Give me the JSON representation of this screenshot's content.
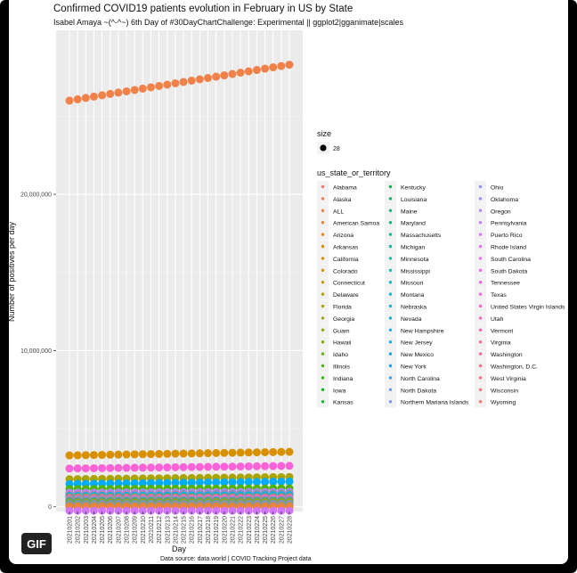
{
  "badge": "GIF",
  "chart_data": {
    "type": "scatter",
    "title": "Confirmed COVID19 patients evolution in February in US by State",
    "subtitle": "Isabel Amaya ~(^-^~) 6th Day of #30DayChartChallenge: Experimental || ggplot2|gganimate|scales",
    "xlabel": "Day",
    "ylabel": "Number of positives per day",
    "caption": "Data source: data.world | COVID Tracking Project data",
    "x": [
      "20210201",
      "20210202",
      "20210203",
      "20210204",
      "20210205",
      "20210206",
      "20210207",
      "20210208",
      "20210209",
      "20210210",
      "20210211",
      "20210212",
      "20210213",
      "20210214",
      "20210215",
      "20210216",
      "20210217",
      "20210218",
      "20210219",
      "20210220",
      "20210221",
      "20210222",
      "20210223",
      "20210224",
      "20210225",
      "20210226",
      "20210227",
      "20210228"
    ],
    "yticks": [
      "0",
      "10,000,000",
      "20,000,000"
    ],
    "ylim": [
      -300000,
      30500000
    ],
    "grid": true,
    "legend_position": "right",
    "size_legend": {
      "title": "size",
      "value": "28"
    },
    "legend_title": "us_state_or_territory",
    "legend_entries": [
      {
        "name": "Alabama",
        "color": "#F8766D"
      },
      {
        "name": "Alaska",
        "color": "#F47B5B"
      },
      {
        "name": "ALL",
        "color": "#F08148"
      },
      {
        "name": "American Samoa",
        "color": "#EB8535"
      },
      {
        "name": "Arizona",
        "color": "#E58A1E"
      },
      {
        "name": "Arkansas",
        "color": "#DE8C00"
      },
      {
        "name": "California",
        "color": "#D89000"
      },
      {
        "name": "Colorado",
        "color": "#D09400"
      },
      {
        "name": "Connecticut",
        "color": "#C49A00"
      },
      {
        "name": "Delaware",
        "color": "#B79F00"
      },
      {
        "name": "Florida",
        "color": "#AAA300"
      },
      {
        "name": "Georgia",
        "color": "#9CA700"
      },
      {
        "name": "Guam",
        "color": "#8DAB00"
      },
      {
        "name": "Hawaii",
        "color": "#7CAE00"
      },
      {
        "name": "Idaho",
        "color": "#68B100"
      },
      {
        "name": "Illinois",
        "color": "#4FB400"
      },
      {
        "name": "Indiana",
        "color": "#2EB600"
      },
      {
        "name": "Iowa",
        "color": "#00B81F"
      },
      {
        "name": "Kansas",
        "color": "#00BA38"
      },
      {
        "name": "Kentucky",
        "color": "#00BB4E"
      },
      {
        "name": "Louisiana",
        "color": "#00BC62"
      },
      {
        "name": "Maine",
        "color": "#00BE73"
      },
      {
        "name": "Maryland",
        "color": "#00BF84"
      },
      {
        "name": "Massachusetts",
        "color": "#00C094"
      },
      {
        "name": "Michigan",
        "color": "#00C0A3"
      },
      {
        "name": "Minnesota",
        "color": "#00C1B1"
      },
      {
        "name": "Mississippi",
        "color": "#00C1BE"
      },
      {
        "name": "Missouri",
        "color": "#00C0CA"
      },
      {
        "name": "Montana",
        "color": "#00BFD5"
      },
      {
        "name": "Nebraska",
        "color": "#00BDDF"
      },
      {
        "name": "Nevada",
        "color": "#00BBE8"
      },
      {
        "name": "New Hampshire",
        "color": "#00B8F0"
      },
      {
        "name": "New Jersey",
        "color": "#00B4F6"
      },
      {
        "name": "New Mexico",
        "color": "#00B0F6"
      },
      {
        "name": "New York",
        "color": "#00ABFC"
      },
      {
        "name": "North Carolina",
        "color": "#35A2FF"
      },
      {
        "name": "North Dakota",
        "color": "#619CFF"
      },
      {
        "name": "Northern Mariana Islands",
        "color": "#7F96FF"
      },
      {
        "name": "Ohio",
        "color": "#9590FF"
      },
      {
        "name": "Oklahoma",
        "color": "#A58AFF"
      },
      {
        "name": "Oregon",
        "color": "#B983FF"
      },
      {
        "name": "Pennsylvania",
        "color": "#C77CFF"
      },
      {
        "name": "Puerto Rico",
        "color": "#D277FC"
      },
      {
        "name": "Rhode Island",
        "color": "#DC71FA"
      },
      {
        "name": "South Carolina",
        "color": "#E76BF3"
      },
      {
        "name": "South Dakota",
        "color": "#F066EA"
      },
      {
        "name": "Tennessee",
        "color": "#F763E0"
      },
      {
        "name": "Texas",
        "color": "#FA62D8"
      },
      {
        "name": "United States Virgin Islands",
        "color": "#FD61D1"
      },
      {
        "name": "Utah",
        "color": "#FF61C3"
      },
      {
        "name": "Vermont",
        "color": "#FF62B5"
      },
      {
        "name": "Virginia",
        "color": "#FF64A7"
      },
      {
        "name": "Washington",
        "color": "#FF6699"
      },
      {
        "name": "Washington, D.C.",
        "color": "#FE6B8C"
      },
      {
        "name": "West Virginia",
        "color": "#FC6E80"
      },
      {
        "name": "Wisconsin",
        "color": "#FA7176"
      },
      {
        "name": "Wyoming",
        "color": "#F8746F"
      }
    ],
    "series": [
      {
        "name": "ALL",
        "color": "#F08148",
        "start": 26000000,
        "end": 28300000
      },
      {
        "name": "California",
        "color": "#D89000",
        "start": 3290000,
        "end": 3520000
      },
      {
        "name": "Texas",
        "color": "#FA62D8",
        "start": 2450000,
        "end": 2620000
      },
      {
        "name": "Florida",
        "color": "#AAA300",
        "start": 1770000,
        "end": 1910000
      },
      {
        "name": "New York",
        "color": "#00ABFC",
        "start": 1460000,
        "end": 1620000
      },
      {
        "name": "Illinois",
        "color": "#4FB400",
        "start": 1140000,
        "end": 1180000
      },
      {
        "name": "Georgia",
        "color": "#9CA700",
        "start": 910000,
        "end": 960000
      },
      {
        "name": "Ohio",
        "color": "#9590FF",
        "start": 910000,
        "end": 960000
      },
      {
        "name": "Pennsylvania",
        "color": "#C77CFF",
        "start": 860000,
        "end": 930000
      },
      {
        "name": "North Carolina",
        "color": "#35A2FF",
        "start": 780000,
        "end": 850000
      },
      {
        "name": "Arizona",
        "color": "#E58A1E",
        "start": 760000,
        "end": 810000
      },
      {
        "name": "Tennessee",
        "color": "#F763E0",
        "start": 740000,
        "end": 770000
      },
      {
        "name": "New Jersey",
        "color": "#00B4F6",
        "start": 700000,
        "end": 760000
      },
      {
        "name": "Indiana",
        "color": "#2EB600",
        "start": 630000,
        "end": 650000
      },
      {
        "name": "Michigan",
        "color": "#00C0A3",
        "start": 620000,
        "end": 650000
      },
      {
        "name": "Wisconsin",
        "color": "#FA7176",
        "start": 590000,
        "end": 610000
      },
      {
        "name": "Massachusetts",
        "color": "#00C094",
        "start": 520000,
        "end": 580000
      },
      {
        "name": "Virginia",
        "color": "#FF64A7",
        "start": 510000,
        "end": 570000
      },
      {
        "name": "Minnesota",
        "color": "#00C1B1",
        "start": 470000,
        "end": 480000
      },
      {
        "name": "Missouri",
        "color": "#00C0CA",
        "start": 470000,
        "end": 480000
      },
      {
        "name": "Alabama",
        "color": "#F8766D",
        "start": 460000,
        "end": 490000
      },
      {
        "name": "South Carolina",
        "color": "#E76BF3",
        "start": 440000,
        "end": 480000
      },
      {
        "name": "Colorado",
        "color": "#D09400",
        "start": 400000,
        "end": 420000
      },
      {
        "name": "Louisiana",
        "color": "#00BC62",
        "start": 400000,
        "end": 420000
      },
      {
        "name": "Kentucky",
        "color": "#00BB4E",
        "start": 350000,
        "end": 390000
      },
      {
        "name": "Oklahoma",
        "color": "#A58AFF",
        "start": 390000,
        "end": 420000
      },
      {
        "name": "Utah",
        "color": "#FF61C3",
        "start": 350000,
        "end": 370000
      },
      {
        "name": "Washington",
        "color": "#FF6699",
        "start": 310000,
        "end": 330000
      },
      {
        "name": "Iowa",
        "color": "#00B81F",
        "start": 320000,
        "end": 330000
      },
      {
        "name": "Maryland",
        "color": "#00BF84",
        "start": 350000,
        "end": 380000
      },
      {
        "name": "Arkansas",
        "color": "#DE8C00",
        "start": 290000,
        "end": 310000
      },
      {
        "name": "Nevada",
        "color": "#00BBE8",
        "start": 280000,
        "end": 290000
      },
      {
        "name": "Kansas",
        "color": "#00BA38",
        "start": 280000,
        "end": 290000
      },
      {
        "name": "Connecticut",
        "color": "#C49A00",
        "start": 250000,
        "end": 280000
      },
      {
        "name": "Mississippi",
        "color": "#00C1BE",
        "start": 270000,
        "end": 290000
      },
      {
        "name": "Nebraska",
        "color": "#00BDDF",
        "start": 190000,
        "end": 200000
      },
      {
        "name": "New Mexico",
        "color": "#00B0F6",
        "start": 175000,
        "end": 185000
      },
      {
        "name": "Idaho",
        "color": "#68B100",
        "start": 160000,
        "end": 170000
      },
      {
        "name": "Oregon",
        "color": "#B983FF",
        "start": 145000,
        "end": 155000
      },
      {
        "name": "Puerto Rico",
        "color": "#D277FC",
        "start": -250000,
        "end": -250000
      },
      {
        "name": "South Dakota",
        "color": "#F066EA",
        "start": 108000,
        "end": 111000
      },
      {
        "name": "North Dakota",
        "color": "#619CFF",
        "start": 97000,
        "end": 99000
      },
      {
        "name": "Rhode Island",
        "color": "#DC71FA",
        "start": 115000,
        "end": 126000
      },
      {
        "name": "West Virginia",
        "color": "#FC6E80",
        "start": 120000,
        "end": 130000
      },
      {
        "name": "Montana",
        "color": "#00BFD5",
        "start": 95000,
        "end": 99000
      },
      {
        "name": "Delaware",
        "color": "#B79F00",
        "start": 80000,
        "end": 86000
      },
      {
        "name": "Alaska",
        "color": "#F47B5B",
        "start": 53000,
        "end": 57000
      },
      {
        "name": "Wyoming",
        "color": "#F8746F",
        "start": 52000,
        "end": 54000
      },
      {
        "name": "New Hampshire",
        "color": "#00B8F0",
        "start": 65000,
        "end": 73000
      },
      {
        "name": "Washington, D.C.",
        "color": "#FE6B8C",
        "start": 38000,
        "end": 41000
      },
      {
        "name": "Maine",
        "color": "#00BE73",
        "start": 40000,
        "end": 44000
      },
      {
        "name": "Hawaii",
        "color": "#7CAE00",
        "start": 25000,
        "end": 27000
      },
      {
        "name": "Vermont",
        "color": "#FF62B5",
        "start": 12000,
        "end": 16000
      },
      {
        "name": "Guam",
        "color": "#8DAB00",
        "start": 7500,
        "end": 7700
      },
      {
        "name": "United States Virgin Islands",
        "color": "#FD61D1",
        "start": 2400,
        "end": 2600
      },
      {
        "name": "Northern Mariana Islands",
        "color": "#7F96FF",
        "start": 130,
        "end": 140
      },
      {
        "name": "American Samoa",
        "color": "#EB8535",
        "start": 0,
        "end": 0
      }
    ]
  }
}
